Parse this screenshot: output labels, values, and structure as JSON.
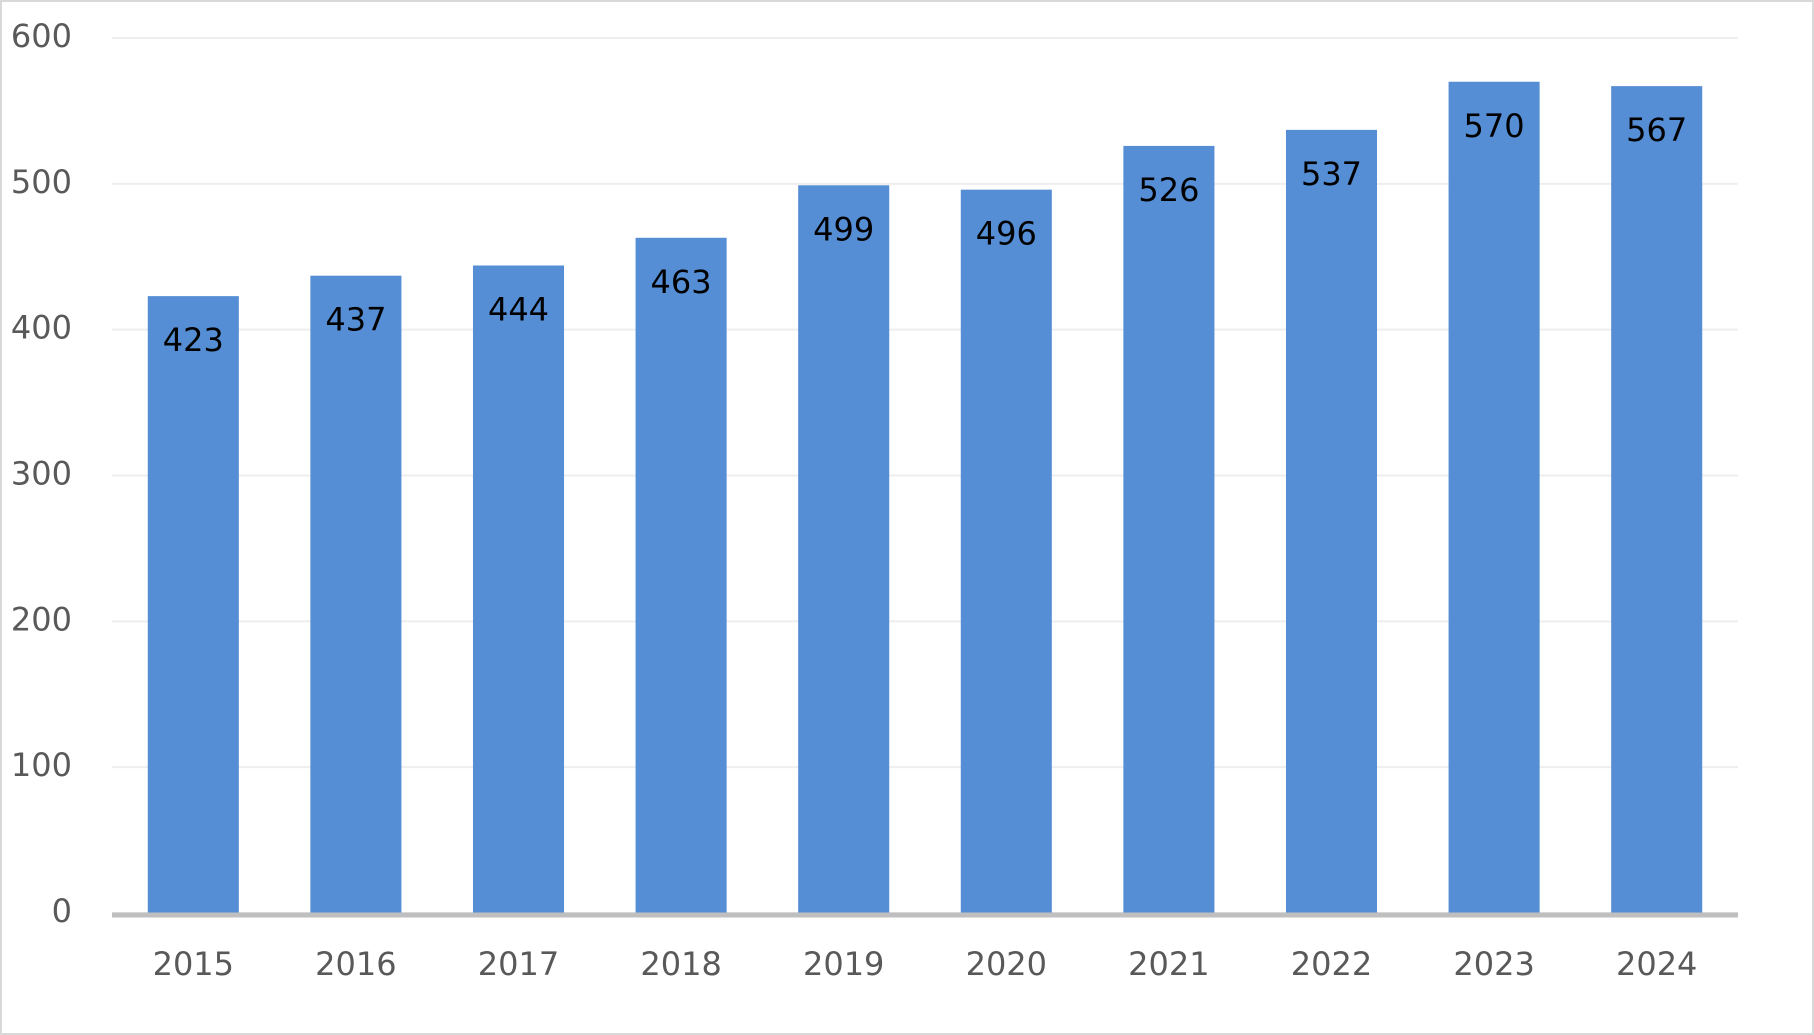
{
  "chart_data": {
    "type": "bar",
    "categories": [
      "2015",
      "2016",
      "2017",
      "2018",
      "2019",
      "2020",
      "2021",
      "2022",
      "2023",
      "2024"
    ],
    "values": [
      423,
      437,
      444,
      463,
      499,
      496,
      526,
      537,
      570,
      567
    ],
    "color": "#558ed5",
    "ylim": [
      0,
      600
    ],
    "yticks": [
      0,
      100,
      200,
      300,
      400,
      500,
      600
    ],
    "grid": true
  }
}
